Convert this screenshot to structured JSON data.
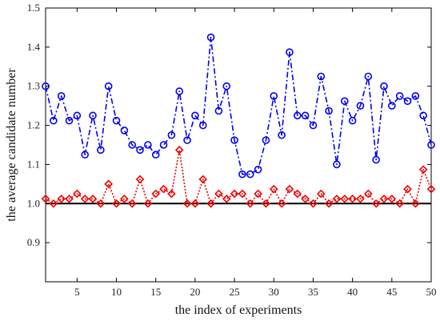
{
  "chart_data": {
    "type": "line",
    "title": "",
    "xlabel": "the index of experiments",
    "ylabel": "the average candidate number",
    "xlim": [
      1,
      50
    ],
    "ylim": [
      0.8,
      1.5
    ],
    "x_ticks": [
      5,
      10,
      15,
      20,
      25,
      30,
      35,
      40,
      45,
      50
    ],
    "y_ticks": [
      0.9,
      1.0,
      1.1,
      1.2,
      1.3,
      1.4,
      1.5
    ],
    "grid": false,
    "x": [
      1,
      2,
      3,
      4,
      5,
      6,
      7,
      8,
      9,
      10,
      11,
      12,
      13,
      14,
      15,
      16,
      17,
      18,
      19,
      20,
      21,
      22,
      23,
      24,
      25,
      26,
      27,
      28,
      29,
      30,
      31,
      32,
      33,
      34,
      35,
      36,
      37,
      38,
      39,
      40,
      41,
      42,
      43,
      44,
      45,
      46,
      47,
      48,
      49,
      50
    ],
    "series": [
      {
        "color": "#0000ee",
        "line_style": "dash-dot",
        "marker": "circle",
        "values": [
          1.3,
          1.212,
          1.275,
          1.212,
          1.225,
          1.125,
          1.225,
          1.137,
          1.3,
          1.212,
          1.187,
          1.15,
          1.137,
          1.15,
          1.125,
          1.15,
          1.175,
          1.287,
          1.162,
          1.225,
          1.2,
          1.425,
          1.237,
          1.3,
          1.162,
          1.075,
          1.075,
          1.087,
          1.162,
          1.275,
          1.175,
          1.387,
          1.225,
          1.225,
          1.2,
          1.325,
          1.237,
          1.1,
          1.262,
          1.212,
          1.25,
          1.325,
          1.112,
          1.3,
          1.25,
          1.275,
          1.262,
          1.275,
          1.225,
          1.15
        ]
      },
      {
        "color": "#ee0000",
        "line_style": "dotted",
        "marker": "diamond",
        "values": [
          1.012,
          1.0,
          1.012,
          1.012,
          1.025,
          1.012,
          1.012,
          1.0,
          1.05,
          1.0,
          1.012,
          1.0,
          1.062,
          1.0,
          1.025,
          1.037,
          1.025,
          1.137,
          1.0,
          1.0,
          1.062,
          1.0,
          1.025,
          1.012,
          1.025,
          1.025,
          1.0,
          1.025,
          1.0,
          1.037,
          1.0,
          1.037,
          1.025,
          1.012,
          1.0,
          1.025,
          1.0,
          1.012,
          1.012,
          1.012,
          1.012,
          1.025,
          1.0,
          1.012,
          1.012,
          1.0,
          1.037,
          1.0,
          1.087,
          1.037
        ]
      }
    ],
    "reference_line": {
      "y": 1.0,
      "color": "#000000"
    }
  }
}
